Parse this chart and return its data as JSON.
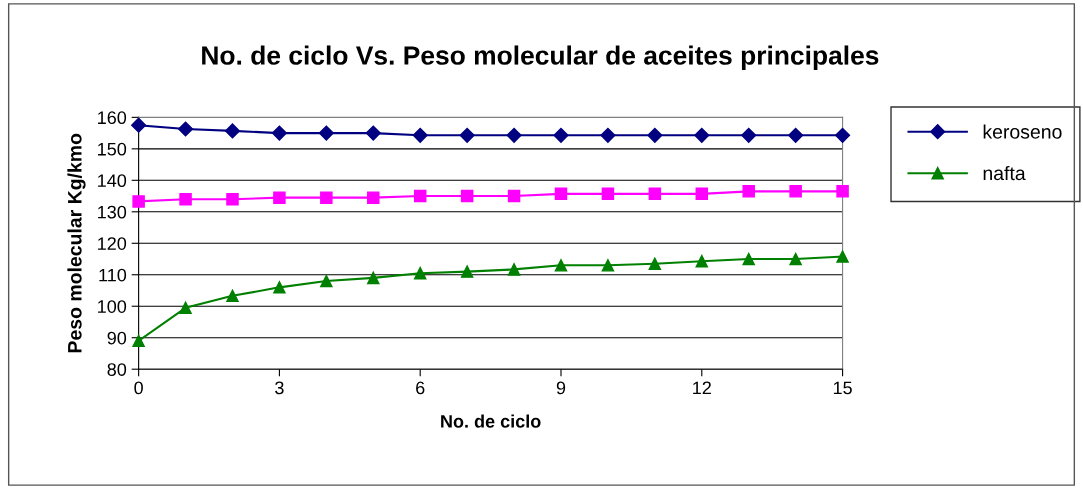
{
  "chart_data": {
    "type": "line",
    "title": "No. de ciclo Vs. Peso molecular de aceites principales",
    "xlabel": "No. de ciclo",
    "ylabel": "Peso molecular Kg/kmo",
    "x": [
      0,
      1,
      2,
      3,
      4,
      5,
      6,
      7,
      8,
      9,
      10,
      11,
      12,
      13,
      14,
      15
    ],
    "xlim": [
      0,
      15
    ],
    "xticks": [
      0,
      3,
      6,
      9,
      12,
      15
    ],
    "ylim": [
      80,
      160
    ],
    "yticks": [
      80,
      90,
      100,
      110,
      120,
      130,
      140,
      150,
      160
    ],
    "grid": "y",
    "legend": "right",
    "line_style": "solid",
    "series": [
      {
        "name": "keroseno",
        "color": "#000080",
        "marker": "diamond",
        "values": [
          157.5,
          156.3,
          155.7,
          155,
          155,
          155,
          154.3,
          154.3,
          154.3,
          154.3,
          154.3,
          154.3,
          154.3,
          154.3,
          154.3,
          154.3
        ]
      },
      {
        "color": "#ff00ff",
        "marker": "square",
        "values": [
          133.3,
          134,
          134,
          134.5,
          134.5,
          134.5,
          135,
          135,
          135,
          135.7,
          135.7,
          135.7,
          135.7,
          136.5,
          136.5,
          136.5
        ]
      },
      {
        "name": "nafta",
        "color": "#008000",
        "marker": "triangle",
        "values": [
          89,
          99.5,
          103.3,
          106,
          108,
          109,
          110.5,
          111,
          111.7,
          113,
          113,
          113.5,
          114.3,
          115,
          115,
          115.8
        ]
      }
    ]
  }
}
